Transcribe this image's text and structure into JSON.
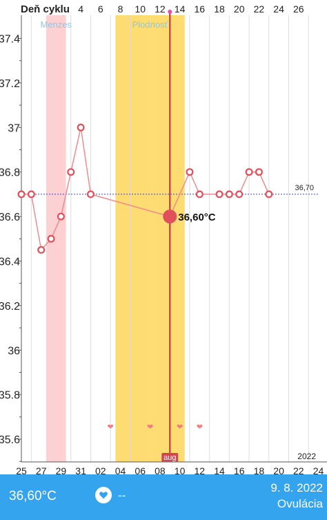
{
  "chart_data": {
    "type": "line",
    "header_label": "Deň cyklu",
    "cycle_day_ticks": [
      "4",
      "6",
      "8",
      "10",
      "12",
      "14",
      "16",
      "18",
      "20",
      "22",
      "24",
      "26"
    ],
    "date_ticks": [
      "25",
      "27",
      "29",
      "31",
      "02",
      "04",
      "06",
      "08",
      "10",
      "12",
      "14",
      "16",
      "18",
      "20",
      "22",
      "24"
    ],
    "year_label": "2022",
    "month_marker_label": "aug",
    "y_ticks": [
      "37.4",
      "37.2",
      "37",
      "36.8",
      "36.6",
      "36.4",
      "36.2",
      "36",
      "35.8",
      "35.6"
    ],
    "ylim": [
      35.5,
      37.5
    ],
    "grid": true,
    "bands": [
      {
        "label": "Menzes",
        "from": "28",
        "to": "30",
        "color": "#ffd0d2",
        "label_color": "#8dc8ea"
      },
      {
        "label": "Plodnosť",
        "from": "04",
        "to": "11",
        "color": "#fddc72",
        "label_color": "#8dc8ea"
      }
    ],
    "coverline": {
      "value": 36.7,
      "label": "36,70",
      "color": "#3a3fbf"
    },
    "series": [
      {
        "color": "#f08a8f",
        "x": [
          "25",
          "26",
          "27",
          "28",
          "29",
          "30",
          "31",
          "01",
          "09",
          "11",
          "12",
          "14",
          "15",
          "16",
          "17",
          "18",
          "19"
        ],
        "y": [
          36.7,
          36.7,
          36.45,
          36.5,
          36.6,
          36.8,
          37.0,
          36.7,
          36.6,
          36.8,
          36.7,
          36.7,
          36.7,
          36.7,
          36.8,
          36.8,
          36.7
        ]
      }
    ],
    "selected_point": {
      "x": "09",
      "y": 36.6,
      "label": "36,60°C",
      "color": "#e0505a"
    },
    "hearts": {
      "x": [
        "03",
        "07",
        "10",
        "12"
      ],
      "color": "#f37b82"
    }
  },
  "footer": {
    "temperature": "36,60°C",
    "heart_icon": "heart-icon",
    "heart_value": "--",
    "date": "9. 8. 2022",
    "phase": "Ovulácia",
    "background": "#35a4ee"
  }
}
